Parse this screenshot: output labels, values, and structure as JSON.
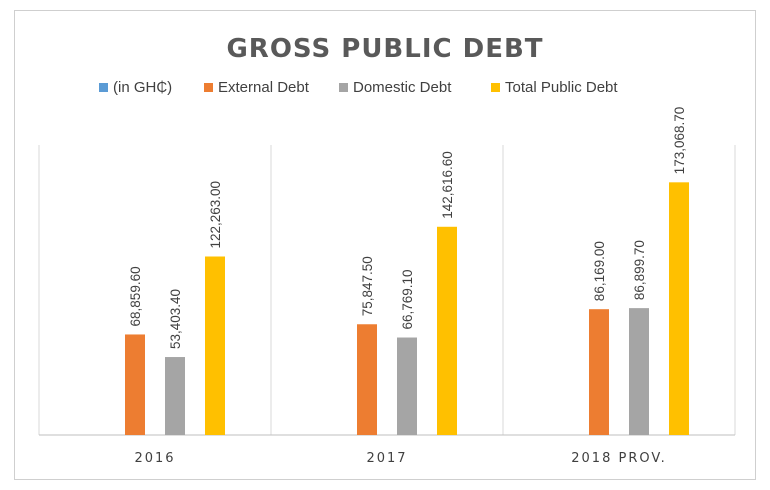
{
  "chart_data": {
    "type": "bar",
    "title": "GROSS PUBLIC DEBT",
    "categories": [
      "2016",
      "2017",
      "2018 PROV."
    ],
    "series": [
      {
        "name": "(in GH₵)",
        "color": "#5b9bd5",
        "values": [
          0,
          0,
          0
        ],
        "labels": [
          "",
          "",
          ""
        ]
      },
      {
        "name": "External Debt",
        "color": "#ed7d31",
        "values": [
          68859.6,
          75847.5,
          86169.0
        ],
        "labels": [
          "68,859.60",
          "75,847.50",
          "86,169.00"
        ]
      },
      {
        "name": "Domestic Debt",
        "color": "#a5a5a5",
        "values": [
          53403.4,
          66769.1,
          86899.7
        ],
        "labels": [
          "53,403.40",
          "66,769.10",
          "86,899.70"
        ]
      },
      {
        "name": "Total Public Debt",
        "color": "#ffc000",
        "values": [
          122263.0,
          142616.6,
          173068.7
        ],
        "labels": [
          "122,263.00",
          "142,616.60",
          "173,068.70"
        ]
      }
    ],
    "ylim": [
      0,
      280000
    ],
    "legend_position": "top",
    "grid": false
  }
}
